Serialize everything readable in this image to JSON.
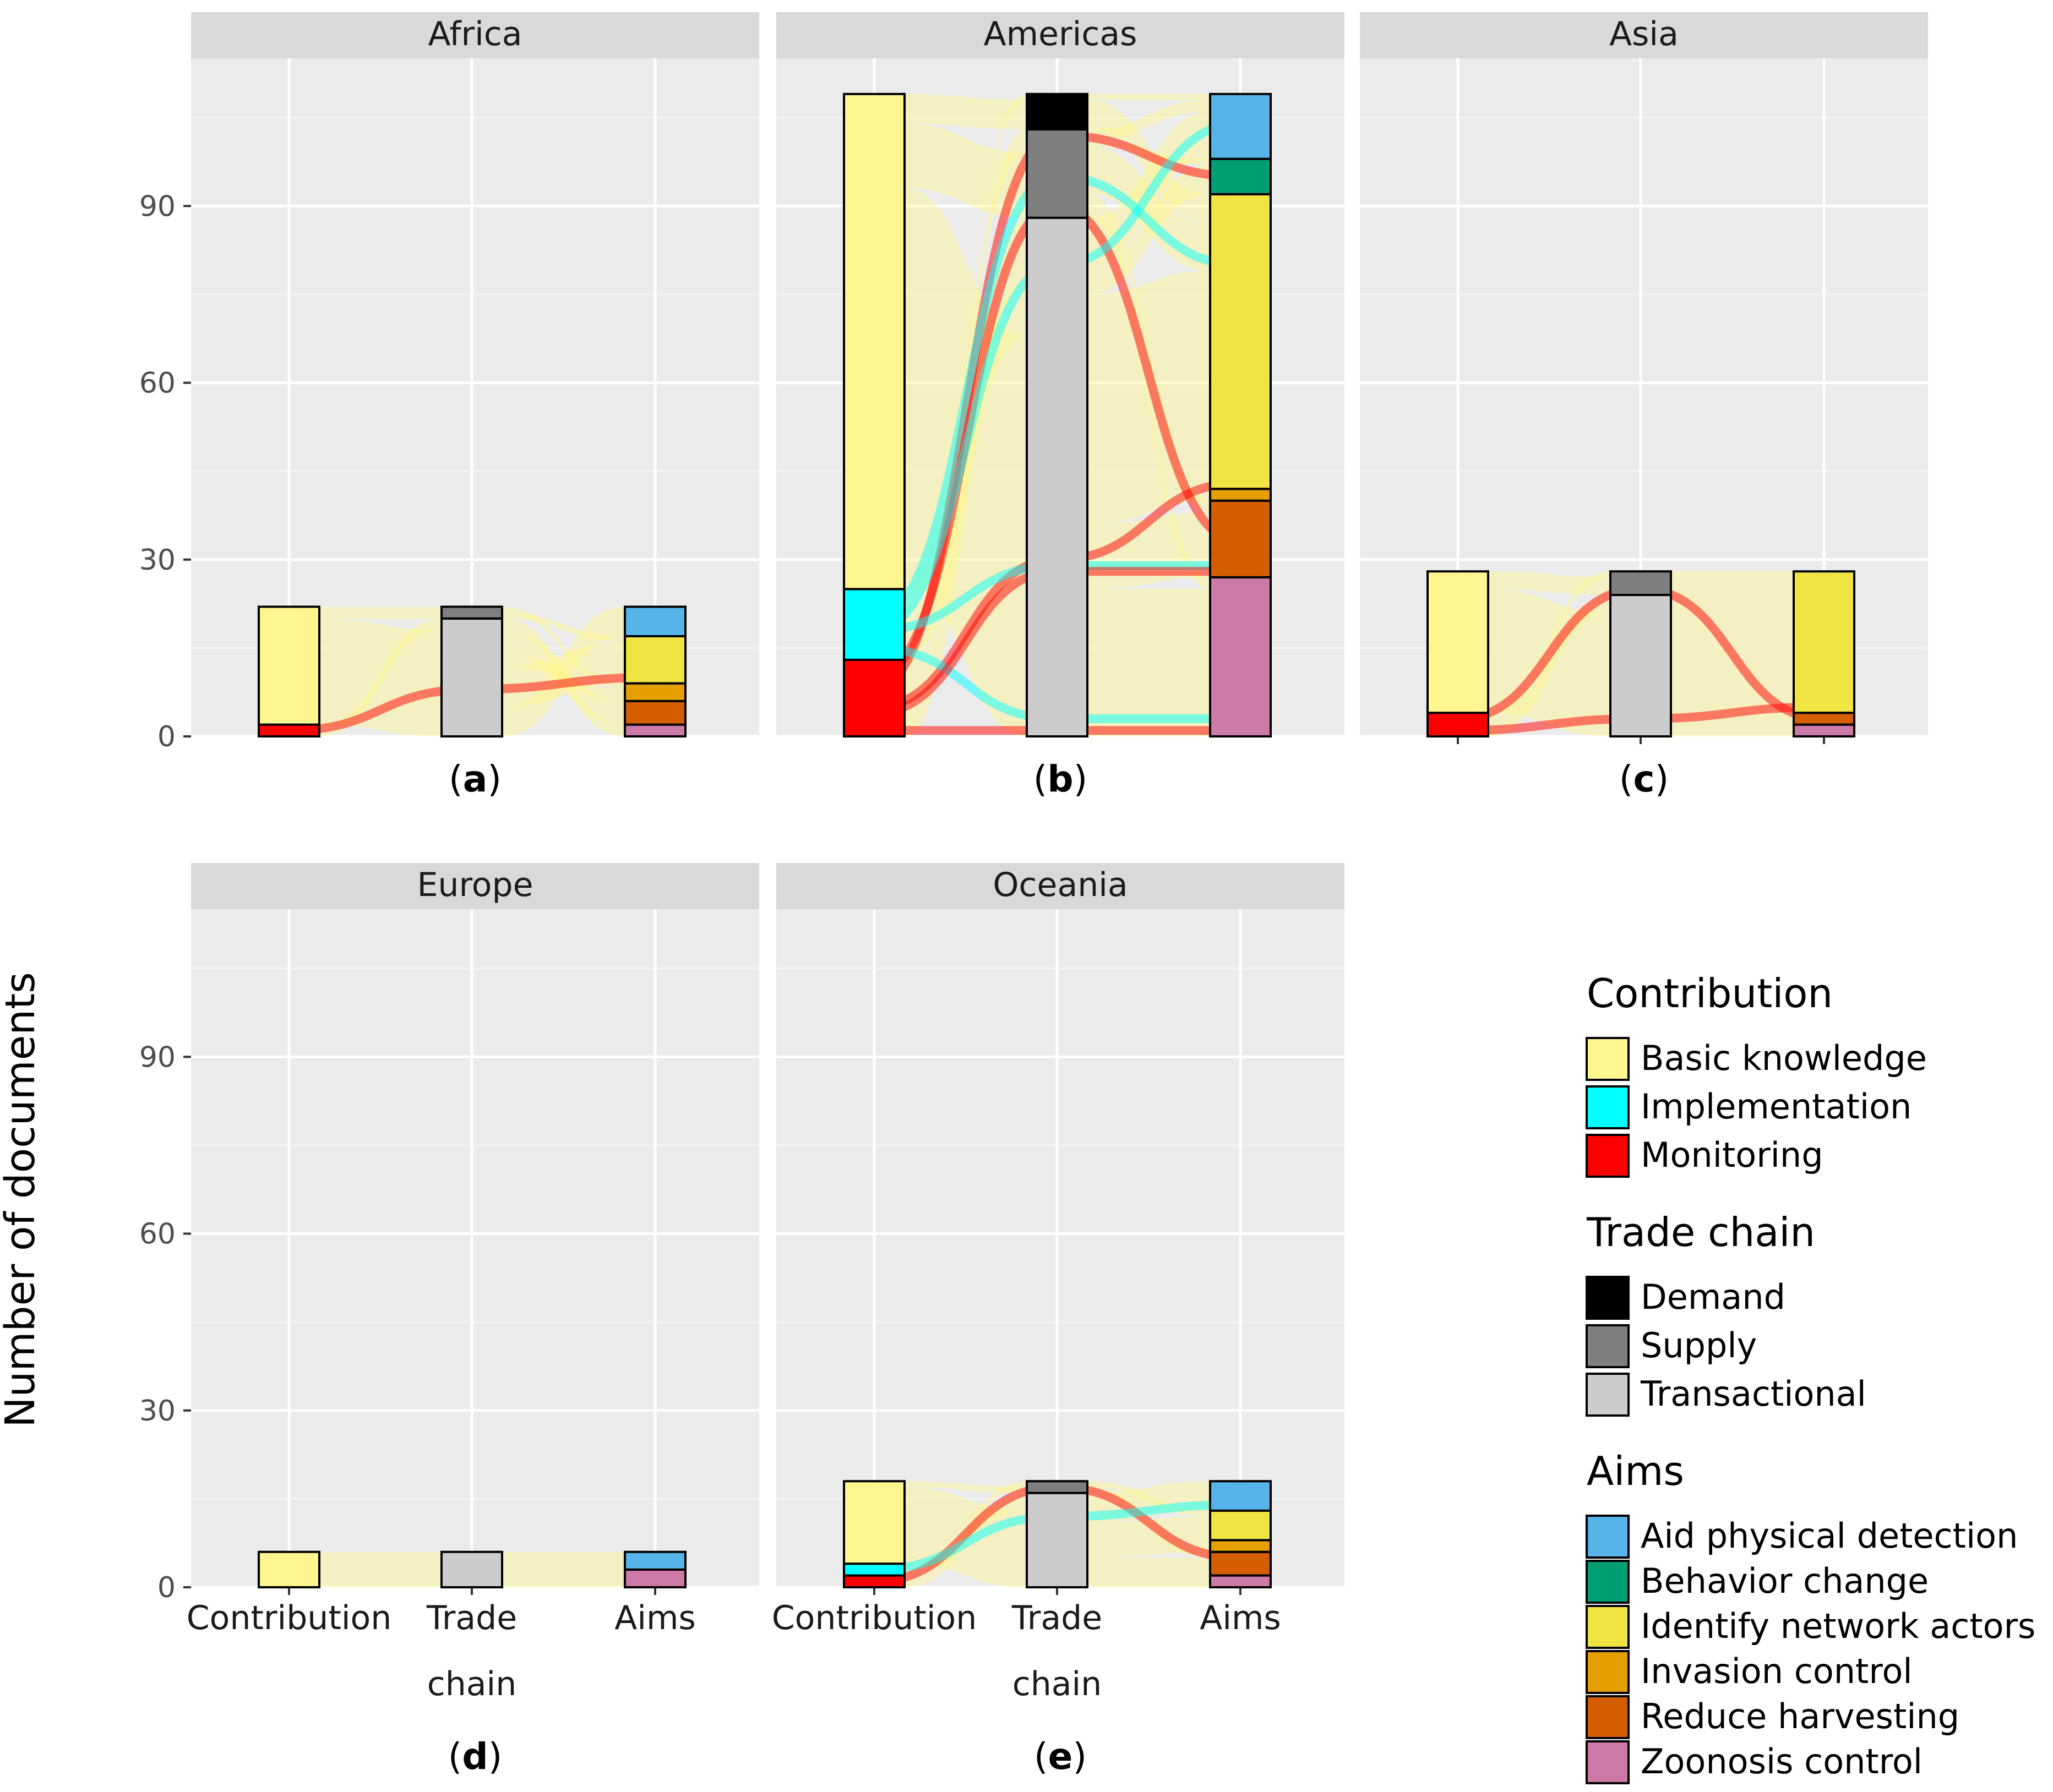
{
  "colors": {
    "panel_bg": "#ebebeb",
    "strip_bg": "#d9d9d9",
    "grid": "#ffffff",
    "Basic knowledge": "#fff68f",
    "Implementation": "#00ffff",
    "Monitoring": "#ff0000",
    "Demand": "#000000",
    "Supply": "#7f7f7f",
    "Transactional": "#cccccc",
    "Aid physical detection": "#56b4e9",
    "Behavior change": "#009e73",
    "Identify network actors": "#f0e442",
    "Invasion control": "#e69f00",
    "Reduce harvesting": "#d55e00",
    "Zoonosis control": "#cc79a7"
  },
  "chart_data": {
    "type": "alluvial",
    "ylabel": "Number of documents",
    "ylim": [
      0,
      113
    ],
    "yticks": [
      "0",
      "30",
      "60",
      "90"
    ],
    "xcats": [
      "Contribution",
      "Trade\nchain",
      "Aims"
    ],
    "xcat_lines": [
      [
        "Contribution"
      ],
      [
        "Trade",
        "chain"
      ],
      [
        "Aims"
      ]
    ],
    "panels": [
      {
        "title": "Africa",
        "tag_letter": "a",
        "stacks": [
          [
            {
              "label": "Monitoring",
              "value": 2
            },
            {
              "label": "Basic knowledge",
              "value": 20
            }
          ],
          [
            {
              "label": "Transactional",
              "value": 20
            },
            {
              "label": "Supply",
              "value": 2
            }
          ],
          [
            {
              "label": "Zoonosis control",
              "value": 2
            },
            {
              "label": "Reduce harvesting",
              "value": 4
            },
            {
              "label": "Invasion control",
              "value": 3
            },
            {
              "label": "Identify network actors",
              "value": 8
            },
            {
              "label": "Aid physical detection",
              "value": 5
            }
          ]
        ],
        "flows": [
          {
            "from": "Basic knowledge",
            "to": "Transactional",
            "value": 18
          },
          {
            "from": "Basic knowledge",
            "to": "Supply",
            "value": 2
          },
          {
            "from": "Monitoring",
            "to": "Transactional",
            "value": 2
          },
          {
            "from": "Transactional",
            "to": "Aid physical detection",
            "value": 5
          },
          {
            "from": "Transactional",
            "to": "Identify network actors",
            "value": 7
          },
          {
            "from": "Transactional",
            "to": "Invasion control",
            "value": 2
          },
          {
            "from": "Transactional",
            "to": "Reduce harvesting",
            "value": 4
          },
          {
            "from": "Transactional",
            "to": "Zoonosis control",
            "value": 2
          },
          {
            "from": "Supply",
            "to": "Identify network actors",
            "value": 1
          },
          {
            "from": "Supply",
            "to": "Invasion control",
            "value": 1
          }
        ]
      },
      {
        "title": "Americas",
        "tag_letter": "b",
        "stacks": [
          [
            {
              "label": "Monitoring",
              "value": 13
            },
            {
              "label": "Implementation",
              "value": 12
            },
            {
              "label": "Basic knowledge",
              "value": 84
            }
          ],
          [
            {
              "label": "Transactional",
              "value": 88
            },
            {
              "label": "Supply",
              "value": 15
            },
            {
              "label": "Demand",
              "value": 6
            }
          ],
          [
            {
              "label": "Zoonosis control",
              "value": 27
            },
            {
              "label": "Reduce harvesting",
              "value": 13
            },
            {
              "label": "Invasion control",
              "value": 2
            },
            {
              "label": "Identify network actors",
              "value": 50
            },
            {
              "label": "Behavior change",
              "value": 6
            },
            {
              "label": "Aid physical detection",
              "value": 11
            }
          ]
        ],
        "flows": [
          {
            "from": "Basic knowledge",
            "to": "Transactional",
            "value": 68
          },
          {
            "from": "Basic knowledge",
            "to": "Supply",
            "value": 11
          },
          {
            "from": "Basic knowledge",
            "to": "Demand",
            "value": 5
          },
          {
            "from": "Implementation",
            "to": "Transactional",
            "value": 9
          },
          {
            "from": "Implementation",
            "to": "Supply",
            "value": 2
          },
          {
            "from": "Implementation",
            "to": "Demand",
            "value": 1
          },
          {
            "from": "Monitoring",
            "to": "Transactional",
            "value": 11
          },
          {
            "from": "Monitoring",
            "to": "Supply",
            "value": 2
          },
          {
            "from": "Transactional",
            "to": "Zoonosis control",
            "value": 25
          },
          {
            "from": "Transactional",
            "to": "Reduce harvesting",
            "value": 11
          },
          {
            "from": "Transactional",
            "to": "Invasion control",
            "value": 2
          },
          {
            "from": "Transactional",
            "to": "Identify network actors",
            "value": 37
          },
          {
            "from": "Transactional",
            "to": "Behavior change",
            "value": 5
          },
          {
            "from": "Transactional",
            "to": "Aid physical detection",
            "value": 8
          },
          {
            "from": "Supply",
            "to": "Zoonosis control",
            "value": 2
          },
          {
            "from": "Supply",
            "to": "Reduce harvesting",
            "value": 2
          },
          {
            "from": "Supply",
            "to": "Identify network actors",
            "value": 8
          },
          {
            "from": "Supply",
            "to": "Behavior change",
            "value": 1
          },
          {
            "from": "Supply",
            "to": "Aid physical detection",
            "value": 2
          },
          {
            "from": "Demand",
            "to": "Identify network actors",
            "value": 5
          },
          {
            "from": "Demand",
            "to": "Aid physical detection",
            "value": 1
          }
        ]
      },
      {
        "title": "Asia",
        "tag_letter": "c",
        "stacks": [
          [
            {
              "label": "Monitoring",
              "value": 4
            },
            {
              "label": "Basic knowledge",
              "value": 24
            }
          ],
          [
            {
              "label": "Transactional",
              "value": 24
            },
            {
              "label": "Supply",
              "value": 4
            }
          ],
          [
            {
              "label": "Zoonosis control",
              "value": 2
            },
            {
              "label": "Reduce harvesting",
              "value": 2
            },
            {
              "label": "Identify network actors",
              "value": 24
            }
          ]
        ],
        "flows": [
          {
            "from": "Basic knowledge",
            "to": "Transactional",
            "value": 21
          },
          {
            "from": "Basic knowledge",
            "to": "Supply",
            "value": 3
          },
          {
            "from": "Monitoring",
            "to": "Transactional",
            "value": 3
          },
          {
            "from": "Monitoring",
            "to": "Supply",
            "value": 1
          },
          {
            "from": "Transactional",
            "to": "Zoonosis control",
            "value": 2
          },
          {
            "from": "Transactional",
            "to": "Reduce harvesting",
            "value": 2
          },
          {
            "from": "Transactional",
            "to": "Identify network actors",
            "value": 20
          },
          {
            "from": "Supply",
            "to": "Identify network actors",
            "value": 4
          }
        ]
      },
      {
        "title": "Europe",
        "tag_letter": "d",
        "stacks": [
          [
            {
              "label": "Basic knowledge",
              "value": 6
            }
          ],
          [
            {
              "label": "Transactional",
              "value": 6
            }
          ],
          [
            {
              "label": "Zoonosis control",
              "value": 3
            },
            {
              "label": "Aid physical detection",
              "value": 3
            }
          ]
        ],
        "flows": [
          {
            "from": "Basic knowledge",
            "to": "Transactional",
            "value": 6
          },
          {
            "from": "Transactional",
            "to": "Zoonosis control",
            "value": 3
          },
          {
            "from": "Transactional",
            "to": "Aid physical detection",
            "value": 3
          }
        ]
      },
      {
        "title": "Oceania",
        "tag_letter": "e",
        "stacks": [
          [
            {
              "label": "Monitoring",
              "value": 2
            },
            {
              "label": "Implementation",
              "value": 2
            },
            {
              "label": "Basic knowledge",
              "value": 14
            }
          ],
          [
            {
              "label": "Transactional",
              "value": 16
            },
            {
              "label": "Supply",
              "value": 2
            }
          ],
          [
            {
              "label": "Zoonosis control",
              "value": 2
            },
            {
              "label": "Reduce harvesting",
              "value": 4
            },
            {
              "label": "Invasion control",
              "value": 2
            },
            {
              "label": "Identify network actors",
              "value": 5
            },
            {
              "label": "Aid physical detection",
              "value": 5
            }
          ]
        ],
        "flows": [
          {
            "from": "Basic knowledge",
            "to": "Transactional",
            "value": 13
          },
          {
            "from": "Basic knowledge",
            "to": "Supply",
            "value": 1
          },
          {
            "from": "Implementation",
            "to": "Transactional",
            "value": 2
          },
          {
            "from": "Monitoring",
            "to": "Transactional",
            "value": 1
          },
          {
            "from": "Monitoring",
            "to": "Supply",
            "value": 1
          },
          {
            "from": "Transactional",
            "to": "Zoonosis control",
            "value": 2
          },
          {
            "from": "Transactional",
            "to": "Reduce harvesting",
            "value": 3
          },
          {
            "from": "Transactional",
            "to": "Invasion control",
            "value": 2
          },
          {
            "from": "Transactional",
            "to": "Identify network actors",
            "value": 4
          },
          {
            "from": "Transactional",
            "to": "Aid physical detection",
            "value": 5
          },
          {
            "from": "Supply",
            "to": "Reduce harvesting",
            "value": 1
          },
          {
            "from": "Supply",
            "to": "Identify network actors",
            "value": 1
          }
        ]
      }
    ],
    "highlight_paths": [
      {
        "panel": 0,
        "color": "Monitoring",
        "path": [
          1,
          8,
          10
        ]
      },
      {
        "panel": 1,
        "color": "Monitoring",
        "path": [
          1,
          1,
          1
        ]
      },
      {
        "panel": 1,
        "color": "Monitoring",
        "path": [
          5,
          30,
          43
        ]
      },
      {
        "panel": 1,
        "color": "Monitoring",
        "path": [
          8,
          102,
          95
        ]
      },
      {
        "panel": 1,
        "color": "Monitoring",
        "path": [
          10,
          90,
          33
        ]
      },
      {
        "panel": 1,
        "color": "Implementation",
        "path": [
          15,
          3,
          3
        ]
      },
      {
        "panel": 1,
        "color": "Implementation",
        "path": [
          20,
          95,
          80
        ]
      },
      {
        "panel": 1,
        "color": "Implementation",
        "path": [
          18,
          80,
          104
        ]
      },
      {
        "panel": 1,
        "color": "Implementation",
        "path": [
          18,
          29,
          29
        ]
      },
      {
        "panel": 1,
        "color": "Monitoring",
        "path": [
          4,
          28,
          28
        ]
      },
      {
        "panel": 2,
        "color": "Monitoring",
        "path": [
          1,
          3,
          5
        ]
      },
      {
        "panel": 2,
        "color": "Monitoring",
        "path": [
          3,
          25,
          3
        ]
      },
      {
        "panel": 4,
        "color": "Monitoring",
        "path": [
          1,
          17,
          5
        ]
      },
      {
        "panel": 4,
        "color": "Implementation",
        "path": [
          3,
          12,
          14
        ]
      }
    ],
    "legend": [
      {
        "title": "Contribution",
        "items": [
          "Basic knowledge",
          "Implementation",
          "Monitoring"
        ]
      },
      {
        "title": "Trade chain",
        "items": [
          "Demand",
          "Supply",
          "Transactional"
        ]
      },
      {
        "title": "Aims",
        "items": [
          "Aid physical detection",
          "Behavior change",
          "Identify network actors",
          "Invasion control",
          "Reduce harvesting",
          "Zoonosis control"
        ]
      }
    ]
  }
}
